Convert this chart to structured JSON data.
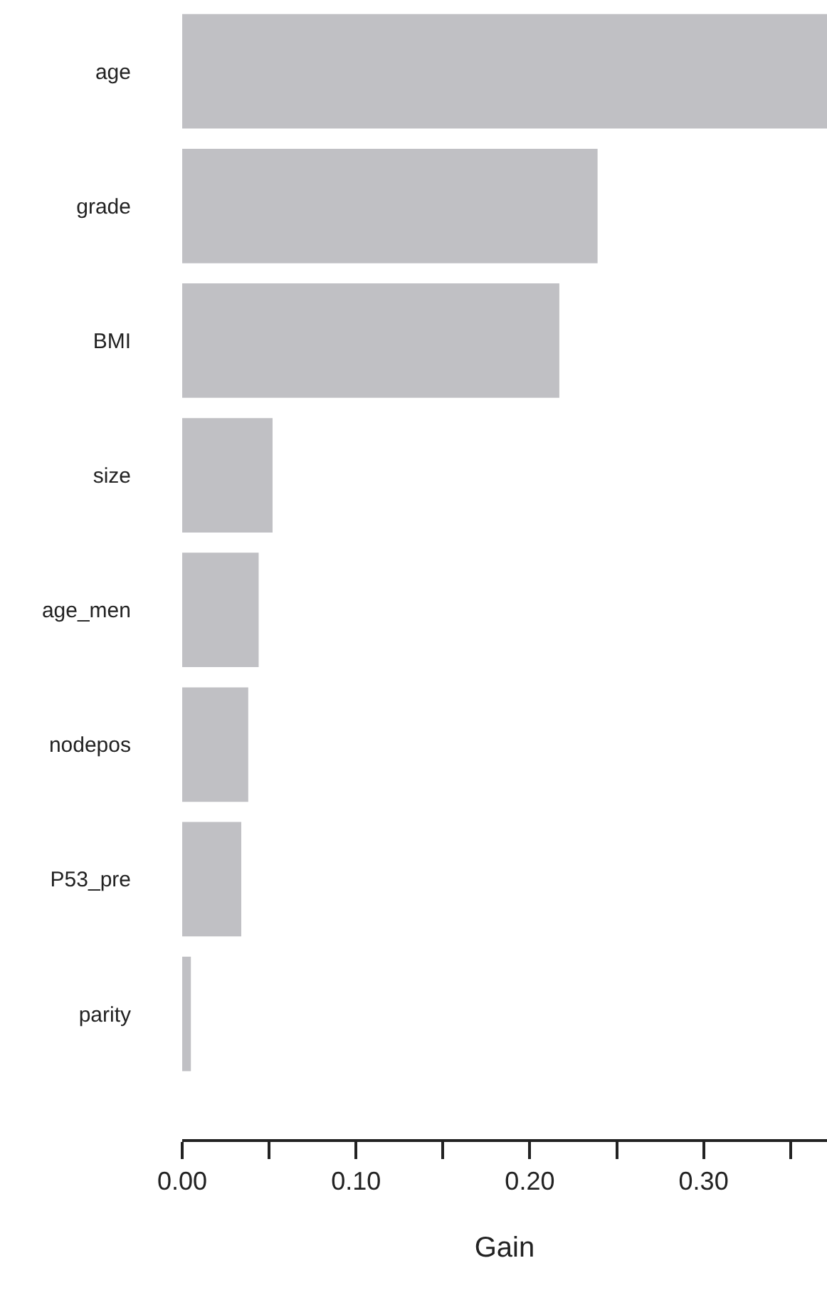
{
  "chart_data": {
    "type": "bar",
    "orientation": "horizontal",
    "xlabel": "Gain",
    "categories": [
      "age",
      "grade",
      "BMI",
      "size",
      "age_men",
      "nodepos",
      "P53_pre",
      "parity"
    ],
    "values": [
      0.371,
      0.239,
      0.217,
      0.052,
      0.044,
      0.038,
      0.034,
      0.005
    ],
    "color": "#c0c0c4",
    "xlim": [
      0,
      0.371
    ],
    "xticks": [
      {
        "value": 0,
        "label": "0.00"
      },
      {
        "value": 0.05,
        "label": null
      },
      {
        "value": 0.1,
        "label": "0.10"
      },
      {
        "value": 0.15,
        "label": null
      },
      {
        "value": 0.2,
        "label": "0.20"
      },
      {
        "value": 0.25,
        "label": null
      },
      {
        "value": 0.3,
        "label": "0.30"
      },
      {
        "value": 0.35,
        "label": null
      }
    ],
    "grid": false
  }
}
